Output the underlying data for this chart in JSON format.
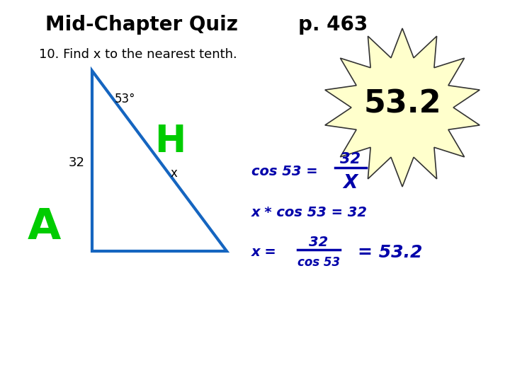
{
  "title": "Mid-Chapter Quiz",
  "page": "p. 463",
  "subtitle": "10. Find x to the nearest tenth.",
  "answer": "53.2",
  "triangle_color": "#1565C0",
  "green_color": "#00CC00",
  "blue_dark": "#0000AA",
  "star_fill": "#FFFFCC",
  "star_edge": "#333333",
  "background": "#FFFFFF",
  "angle_label": "53°",
  "side_label": "32",
  "h_label": "H",
  "a_label": "A",
  "x_label": "x"
}
